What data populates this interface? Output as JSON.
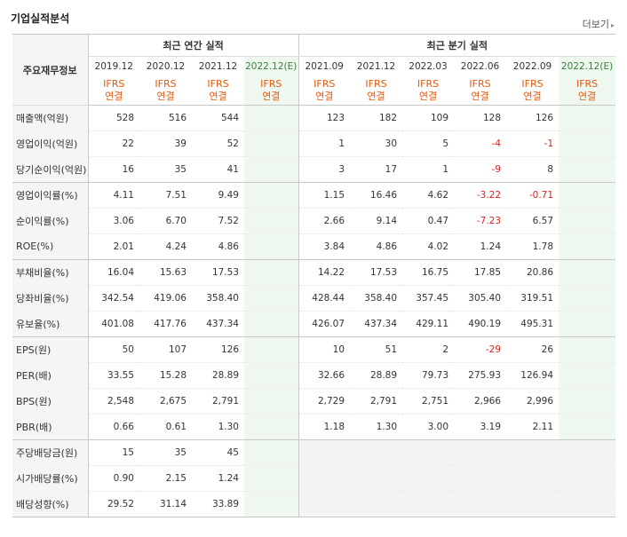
{
  "section_title": "기업실적분석",
  "more_label": "더보기",
  "header": {
    "label": "주요재무정보",
    "annual_group": "최근 연간 실적",
    "quarter_group": "최근 분기 실적",
    "periods": [
      "2019.12",
      "2020.12",
      "2021.12",
      "2022.12(E)",
      "2021.09",
      "2021.12",
      "2022.03",
      "2022.06",
      "2022.09",
      "2022.12(E)"
    ],
    "basis_top": "IFRS",
    "basis_bottom": "연결"
  },
  "rows": [
    {
      "label": "매출액(억원)",
      "values": [
        "528",
        "516",
        "544",
        "",
        "123",
        "182",
        "109",
        "128",
        "126",
        ""
      ]
    },
    {
      "label": "영업이익(억원)",
      "values": [
        "22",
        "39",
        "52",
        "",
        "1",
        "30",
        "5",
        "-4",
        "-1",
        ""
      ]
    },
    {
      "label": "당기순이익(억원)",
      "values": [
        "16",
        "35",
        "41",
        "",
        "3",
        "17",
        "1",
        "-9",
        "8",
        ""
      ]
    },
    {
      "label": "영업이익률(%)",
      "values": [
        "4.11",
        "7.51",
        "9.49",
        "",
        "1.15",
        "16.46",
        "4.62",
        "-3.22",
        "-0.71",
        ""
      ]
    },
    {
      "label": "순이익률(%)",
      "values": [
        "3.06",
        "6.70",
        "7.52",
        "",
        "2.66",
        "9.14",
        "0.47",
        "-7.23",
        "6.57",
        ""
      ]
    },
    {
      "label": "ROE(%)",
      "values": [
        "2.01",
        "4.24",
        "4.86",
        "",
        "3.84",
        "4.86",
        "4.02",
        "1.24",
        "1.78",
        ""
      ]
    },
    {
      "label": "부채비율(%)",
      "values": [
        "16.04",
        "15.63",
        "17.53",
        "",
        "14.22",
        "17.53",
        "16.75",
        "17.85",
        "20.86",
        ""
      ]
    },
    {
      "label": "당좌비율(%)",
      "values": [
        "342.54",
        "419.06",
        "358.40",
        "",
        "428.44",
        "358.40",
        "357.45",
        "305.40",
        "319.51",
        ""
      ]
    },
    {
      "label": "유보율(%)",
      "values": [
        "401.08",
        "417.76",
        "437.34",
        "",
        "426.07",
        "437.34",
        "429.11",
        "490.19",
        "495.31",
        ""
      ]
    },
    {
      "label": "EPS(원)",
      "values": [
        "50",
        "107",
        "126",
        "",
        "10",
        "51",
        "2",
        "-29",
        "26",
        ""
      ]
    },
    {
      "label": "PER(배)",
      "values": [
        "33.55",
        "15.28",
        "28.89",
        "",
        "32.66",
        "28.89",
        "79.73",
        "275.93",
        "126.94",
        ""
      ]
    },
    {
      "label": "BPS(원)",
      "values": [
        "2,548",
        "2,675",
        "2,791",
        "",
        "2,729",
        "2,791",
        "2,751",
        "2,966",
        "2,996",
        ""
      ]
    },
    {
      "label": "PBR(배)",
      "values": [
        "0.66",
        "0.61",
        "1.30",
        "",
        "1.18",
        "1.30",
        "3.00",
        "3.19",
        "2.11",
        ""
      ]
    },
    {
      "label": "주당배당금(원)",
      "values": [
        "15",
        "35",
        "45",
        "",
        "",
        "",
        "",
        "",
        "",
        ""
      ]
    },
    {
      "label": "시가배당률(%)",
      "values": [
        "0.90",
        "2.15",
        "1.24",
        "",
        "",
        "",
        "",
        "",
        "",
        ""
      ]
    },
    {
      "label": "배당성향(%)",
      "values": [
        "29.52",
        "31.14",
        "33.89",
        "",
        "",
        "",
        "",
        "",
        "",
        ""
      ]
    }
  ],
  "colors": {
    "negative": "#e02020",
    "basis": "#e6580b",
    "estimate_bg": "#eef8ee"
  }
}
